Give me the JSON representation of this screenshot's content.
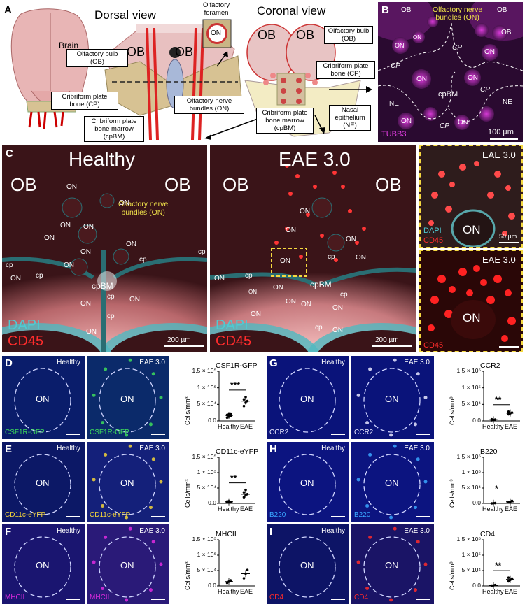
{
  "panel_a": {
    "letter": "A",
    "dorsal_title": "Dorsal view",
    "coronal_title": "Coronal view",
    "brain": "Brain",
    "ob_left": "OB",
    "ob_right": "OB",
    "box_ob": "Olfactory bulb\n(OB)",
    "box_cp": "Cribriform plate\nbone (CP)",
    "box_cpbm": "Cribriform plate\nbone marrow\n(cpBM)",
    "box_on": "Olfactory nerve\nbundles (ON)",
    "foramen_title": "Olfactory\nforamen",
    "foramen_on": "ON",
    "cor_ob_left": "OB",
    "cor_ob_right": "OB",
    "cor_box_ob": "Olfactory bulb\n(OB)",
    "cor_box_cp": "Cribriform plate\nbone (CP)",
    "cor_box_cpbm": "Cribriform plate\nbone marrow\n(cpBM)",
    "cor_box_ne": "Nasal\nepithelium\n(NE)"
  },
  "panel_b": {
    "letter": "B",
    "ob1": "OB",
    "ob2": "OB",
    "ob3": "OB",
    "annotation": "Olfactory nerve\nbundles (ON)",
    "on": "ON",
    "cp": "CP",
    "cpbm": "cpBM",
    "ne": "NE",
    "stain": "TUBB3",
    "scale": "100 µm"
  },
  "panel_c": {
    "letter": "C",
    "healthy_title": "Healthy",
    "eae_title": "EAE 3.0",
    "ob": "OB",
    "on": "ON",
    "cp": "cp",
    "cpbm": "cpBM",
    "annotation": "Olfactory nerve\nbundles (ON)",
    "dapi": "DAPI",
    "cd45": "CD45",
    "scale": "200 µm",
    "inset_title": "EAE 3.0",
    "inset_scale": "50 µm"
  },
  "rows": [
    {
      "letter": "D",
      "left_tag": "Healthy",
      "right_tag": "EAE 3.0",
      "on": "ON",
      "stain": "CSF1R-GFP",
      "stain_color": "#3ddc5a",
      "bg_left": "#0a1d6b",
      "bg_right": "#0b2a6a"
    },
    {
      "letter": "E",
      "left_tag": "Healthy",
      "right_tag": "EAE 3.0",
      "on": "ON",
      "stain": "CD11c-eYFP",
      "stain_color": "#f2d33a",
      "bg_left": "#0c1866",
      "bg_right": "#14207a"
    },
    {
      "letter": "F",
      "left_tag": "Healthy",
      "right_tag": "EAE 3.0",
      "on": "ON",
      "stain": "MHCII",
      "stain_color": "#e02be0",
      "bg_left": "#1a1570",
      "bg_right": "#2a1a78"
    },
    {
      "letter": "G",
      "left_tag": "Healthy",
      "right_tag": "EAE 3.0",
      "on": "ON",
      "stain": "CCR2",
      "stain_color": "#e8e8ff",
      "bg_left": "#0a137a",
      "bg_right": "#0a137a"
    },
    {
      "letter": "H",
      "left_tag": "Healthy",
      "right_tag": "EAE 3.0",
      "on": "ON",
      "stain": "B220",
      "stain_color": "#3aa6ff",
      "bg_left": "#0c1480",
      "bg_right": "#0c1480"
    },
    {
      "letter": "I",
      "left_tag": "Healthy",
      "right_tag": "EAE 3.0",
      "on": "ON",
      "stain": "CD4",
      "stain_color": "#ff2a2a",
      "bg_left": "#0d1466",
      "bg_right": "#1a1466"
    }
  ],
  "chart_data": [
    {
      "type": "scatter",
      "title": "CSF1R-GFP",
      "ylabel": "Cells/mm³",
      "yticks": [
        "0.0",
        "5 × 10⁴",
        "1 × 10⁵",
        "1.5 × 10⁵"
      ],
      "ylim": [
        0,
        150000
      ],
      "categories": [
        "Healthy",
        "EAE"
      ],
      "significance": "***",
      "points": {
        "Healthy": [
          10000,
          13000,
          15000,
          18000,
          20000,
          22000
        ],
        "EAE": [
          45000,
          55000,
          60000,
          65000,
          72000
        ]
      },
      "mean": [
        17000,
        60000
      ]
    },
    {
      "type": "scatter",
      "title": "CD11c-eYFP",
      "ylabel": "Cells/mm³",
      "yticks": [
        "0.0",
        "5 × 10⁴",
        "1 × 10⁵",
        "1.5 × 10⁵"
      ],
      "ylim": [
        0,
        150000
      ],
      "categories": [
        "Healthy",
        "EAE"
      ],
      "significance": "**",
      "points": {
        "Healthy": [
          3000,
          4000,
          5000,
          6000,
          7000
        ],
        "EAE": [
          20000,
          26000,
          30000,
          36000,
          44000
        ]
      },
      "mean": [
        5000,
        30000
      ]
    },
    {
      "type": "scatter",
      "title": "MHCII",
      "ylabel": "Cells/mm³",
      "yticks": [
        "0.0",
        "5 × 10⁴",
        "1 × 10⁵",
        "1.5 × 10⁵"
      ],
      "ylim": [
        0,
        150000
      ],
      "categories": [
        "Healthy",
        "EAE"
      ],
      "significance": "",
      "points": {
        "Healthy": [
          10000,
          14000,
          18000
        ],
        "EAE": [
          25000,
          40000,
          52000
        ]
      },
      "mean": [
        14000,
        40000
      ]
    },
    {
      "type": "scatter",
      "title": "CCR2",
      "ylabel": "Cells/mm³",
      "yticks": [
        "0.0",
        "5 × 10⁴",
        "1 × 10⁵",
        "1.5 × 10⁵"
      ],
      "ylim": [
        0,
        150000
      ],
      "categories": [
        "Healthy",
        "EAE"
      ],
      "significance": "**",
      "points": {
        "Healthy": [
          2000,
          3000,
          4000,
          5000
        ],
        "EAE": [
          20000,
          23000,
          25000,
          28000
        ]
      },
      "mean": [
        3500,
        24000
      ]
    },
    {
      "type": "scatter",
      "title": "B220",
      "ylabel": "Cells/mm³",
      "yticks": [
        "0.0",
        "5 × 10⁴",
        "1 × 10⁵",
        "1.5 × 10⁵"
      ],
      "ylim": [
        0,
        150000
      ],
      "categories": [
        "Healthy",
        "EAE"
      ],
      "significance": "*",
      "points": {
        "Healthy": [
          0,
          500,
          1000
        ],
        "EAE": [
          3000,
          5000,
          8000
        ]
      },
      "mean": [
        500,
        5000
      ]
    },
    {
      "type": "scatter",
      "title": "CD4",
      "ylabel": "Cells/mm³",
      "yticks": [
        "0.0",
        "5 × 10⁴",
        "1 × 10⁵",
        "1.5 × 10⁵"
      ],
      "ylim": [
        0,
        150000
      ],
      "categories": [
        "Healthy",
        "EAE"
      ],
      "significance": "**",
      "points": {
        "Healthy": [
          1000,
          2000,
          3000
        ],
        "EAE": [
          15000,
          20000,
          24000,
          27000
        ]
      },
      "mean": [
        2000,
        21000
      ]
    }
  ]
}
